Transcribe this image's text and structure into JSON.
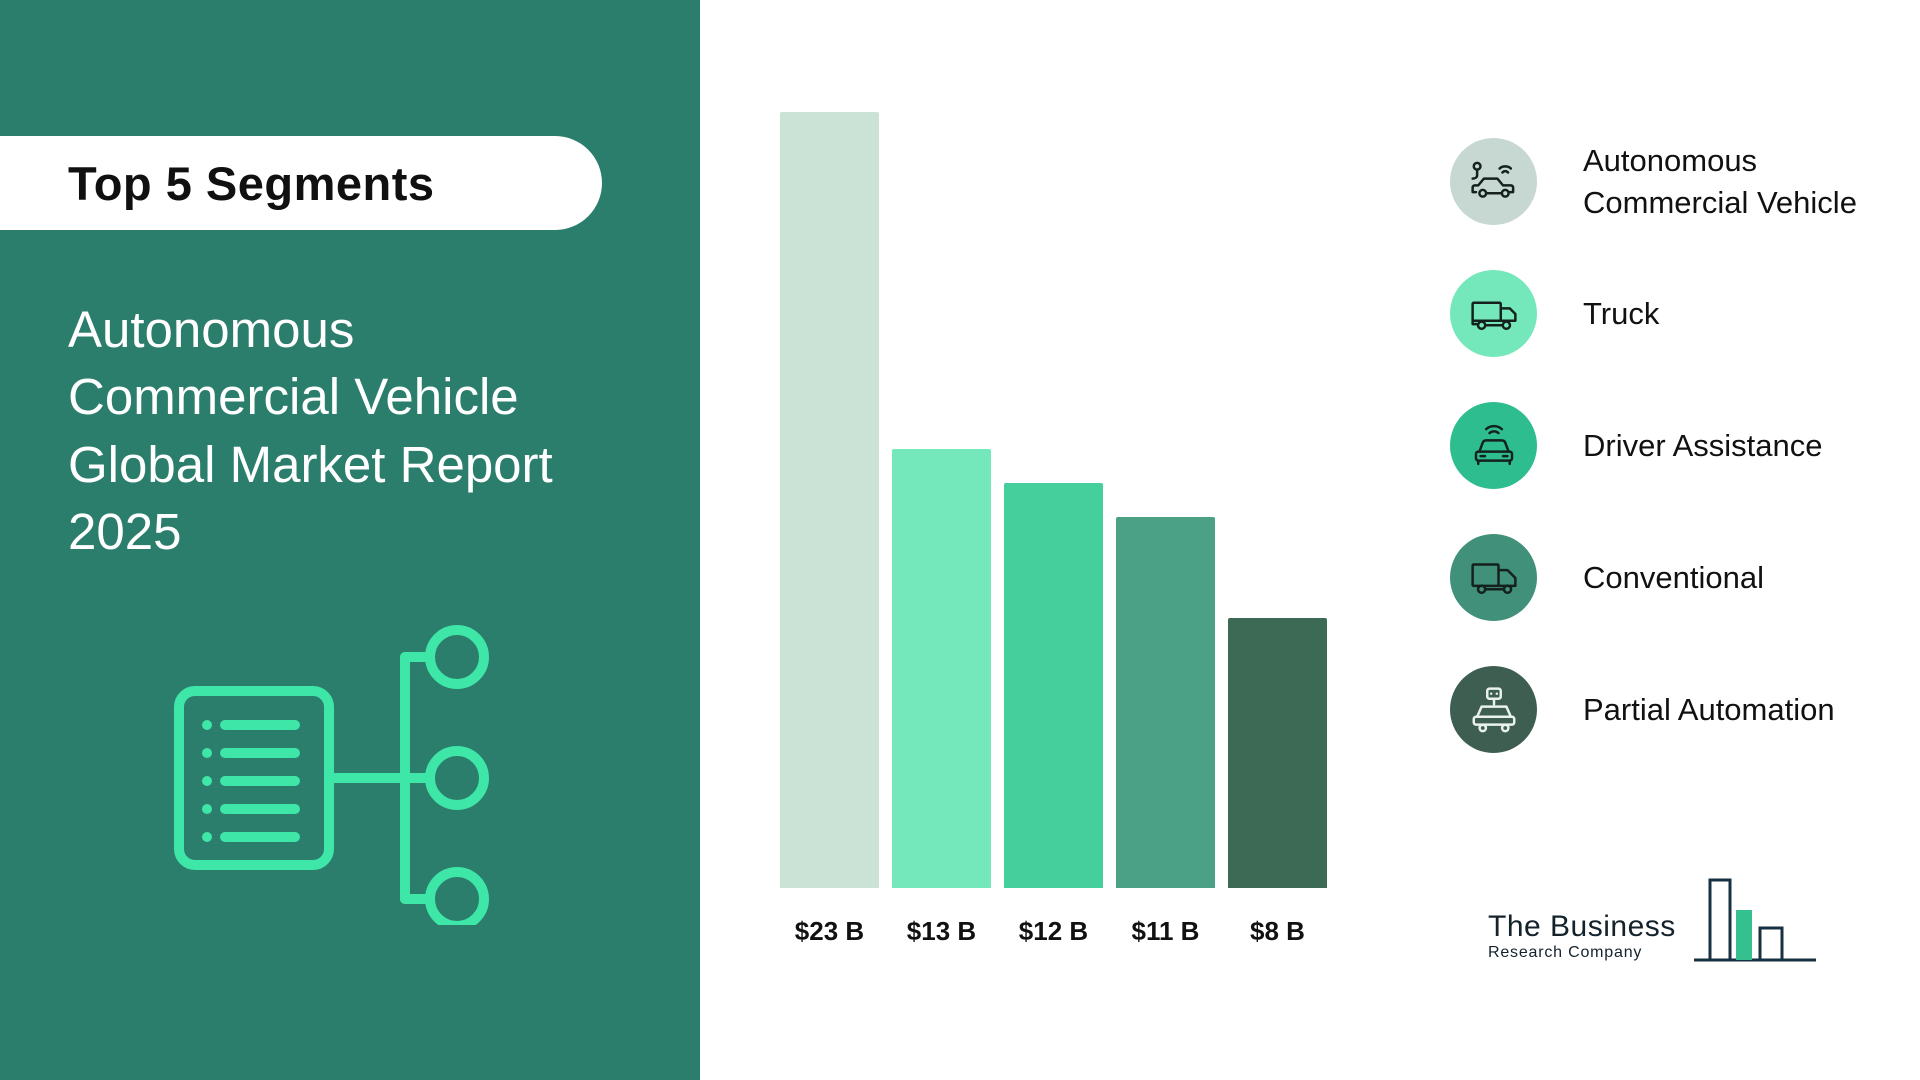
{
  "sidebar": {
    "background": "#2b7d6c",
    "badge_label": "Top 5 Segments",
    "title": "Autonomous\nCommercial Vehicle\nGlobal Market Report\n2025",
    "icon": "document-segments-icon",
    "icon_color": "#3ee6a7"
  },
  "chart_data": {
    "type": "bar",
    "title": "",
    "xlabel": "",
    "ylabel": "",
    "unit": "USD billions",
    "categories": [
      "Autonomous Commercial Vehicle",
      "Truck",
      "Driver Assistance",
      "Conventional",
      "Partial Automation"
    ],
    "values": [
      23,
      13,
      12,
      11,
      8
    ],
    "value_labels": [
      "$23 B",
      "$13 B",
      "$12 B",
      "$11 B",
      "$8 B"
    ],
    "ylim": [
      0,
      23
    ],
    "grid": false,
    "legend_position": "right",
    "bar_colors": [
      "#cbe2d6",
      "#74e8ba",
      "#44cf9c",
      "#4aa186",
      "#3c6a54"
    ]
  },
  "legend": {
    "items": [
      {
        "label": "Autonomous Commercial Vehicle",
        "icon": "autonomous-car-icon",
        "circle_color": "#c7d7d1",
        "icon_color": "#14211c"
      },
      {
        "label": "Truck",
        "icon": "box-truck-icon",
        "circle_color": "#74e8ba",
        "icon_color": "#14211c"
      },
      {
        "label": "Driver Assistance",
        "icon": "connected-car-icon",
        "circle_color": "#2dbd8e",
        "icon_color": "#14211c"
      },
      {
        "label": "Conventional",
        "icon": "delivery-truck-icon",
        "circle_color": "#41907a",
        "icon_color": "#14211c"
      },
      {
        "label": "Partial Automation",
        "icon": "robot-car-icon",
        "circle_color": "#3d5e51",
        "icon_color": "#e9f2ee"
      }
    ]
  },
  "logo": {
    "line1": "The Business",
    "line2": "Research Company",
    "accent_color": "#35c08f",
    "outline_color": "#173042"
  }
}
